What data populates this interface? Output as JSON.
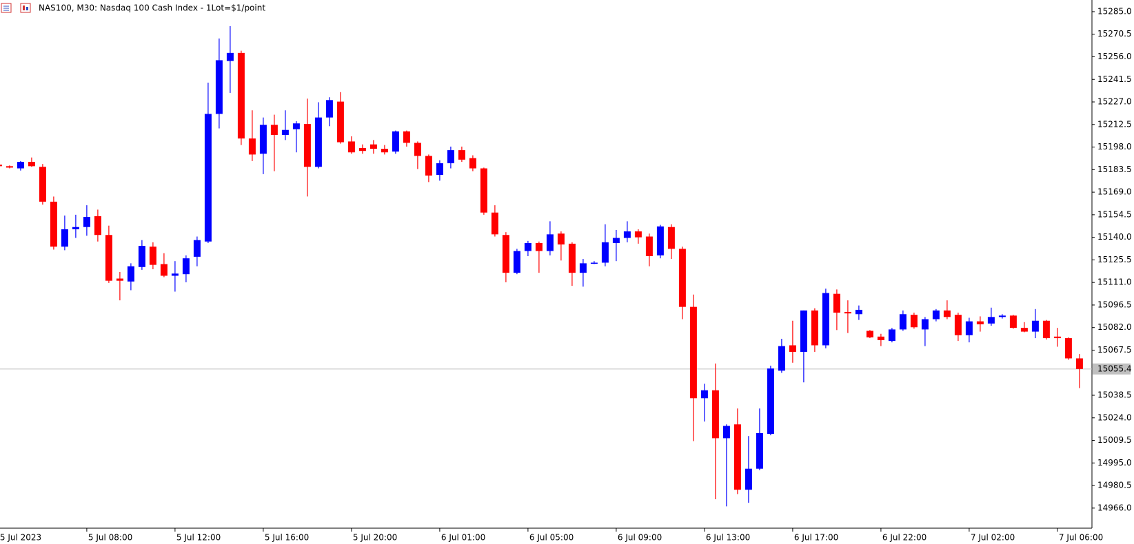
{
  "chart_data": {
    "type": "candlestick",
    "title": "NAS100, M30:  Nasdaq 100 Cash Index - 1Lot=$1/point",
    "up_color": "#0000ff",
    "down_color": "#ff0000",
    "categories": [
      "5 Jul 2023",
      null,
      null,
      null,
      null,
      null,
      null,
      null,
      "5 Jul 08:00",
      null,
      null,
      null,
      null,
      null,
      null,
      null,
      "5 Jul 12:00",
      null,
      null,
      null,
      null,
      null,
      null,
      null,
      "5 Jul 16:00",
      null,
      null,
      null,
      null,
      null,
      null,
      null,
      "5 Jul 20:00",
      null,
      null,
      null,
      null,
      null,
      null,
      null,
      "6 Jul 01:00",
      null,
      null,
      null,
      null,
      null,
      null,
      null,
      "6 Jul 05:00",
      null,
      null,
      null,
      null,
      null,
      null,
      null,
      "6 Jul 09:00",
      null,
      null,
      null,
      null,
      null,
      null,
      null,
      "6 Jul 13:00",
      null,
      null,
      null,
      null,
      null,
      null,
      null,
      "6 Jul 17:00",
      null,
      null,
      null,
      null,
      null,
      null,
      null,
      "6 Jul 22:00",
      null,
      null,
      null,
      null,
      null,
      null,
      null,
      "7 Jul 02:00",
      null,
      null,
      null,
      null,
      null,
      null,
      null,
      "7 Jul 06:00",
      null,
      null
    ],
    "open": [
      15186.7,
      15185.7,
      15184.3,
      15188.5,
      15185.3,
      15162.9,
      15134.0,
      15145.2,
      15146.6,
      15153.6,
      15141.5,
      15113.5,
      15111.6,
      15120.9,
      15134.0,
      15122.8,
      15115.3,
      15116.3,
      15127.5,
      15137.3,
      15219.3,
      15253.3,
      15258.5,
      15203.5,
      15193.7,
      15212.3,
      15205.8,
      15209.5,
      15212.8,
      15185.3,
      15217.0,
      15227.2,
      15201.6,
      15197.4,
      15199.7,
      15196.9,
      15195.1,
      15208.1,
      15200.7,
      15192.3,
      15180.1,
      15187.6,
      15196.0,
      15190.9,
      15184.3,
      15155.9,
      15141.5,
      15117.2,
      15131.2,
      15136.3,
      15131.2,
      15142.4,
      15135.9,
      15117.2,
      15123.3,
      15123.7,
      15136.3,
      15139.6,
      15143.8,
      15140.5,
      15128.4,
      15146.6,
      15132.6,
      15095.3,
      15036.6,
      15041.7,
      15010.9,
      15019.8,
      14977.8,
      14991.3,
      15013.7,
      15054.3,
      15070.6,
      15066.4,
      15093.0,
      15070.6,
      15103.7,
      15092.0,
      15090.6,
      15079.9,
      15076.2,
      15073.4,
      15080.8,
      15090.2,
      15080.8,
      15087.4,
      15093.0,
      15090.2,
      15077.1,
      15086.0,
      15084.6,
      15088.8,
      15089.7,
      15081.8,
      15079.4,
      15086.4,
      15076.2,
      15075.2,
      15062.2
    ],
    "high": [
      15187.1,
      15186.2,
      15189.0,
      15191.3,
      15187.1,
      15166.2,
      15154.0,
      15154.5,
      15160.6,
      15157.8,
      15147.5,
      15117.7,
      15123.3,
      15138.2,
      15136.8,
      15129.8,
      15124.7,
      15128.4,
      15140.5,
      15239.4,
      15267.8,
      15275.7,
      15259.9,
      15221.6,
      15217.0,
      15218.8,
      15221.6,
      15214.6,
      15229.1,
      15226.8,
      15230.0,
      15233.3,
      15204.9,
      15199.7,
      15202.5,
      15199.3,
      15208.6,
      15208.6,
      15201.6,
      15193.2,
      15189.5,
      15198.3,
      15198.3,
      15192.7,
      15184.8,
      15160.6,
      15143.3,
      15132.6,
      15137.7,
      15137.3,
      15150.3,
      15143.8,
      15136.8,
      15126.1,
      15124.7,
      15148.4,
      15144.7,
      15150.3,
      15145.2,
      15142.4,
      15148.0,
      15148.4,
      15134.0,
      15103.2,
      15045.9,
      15058.9,
      15019.8,
      15030.0,
      15012.3,
      15030.0,
      15057.5,
      15074.8,
      15086.4,
      15093.0,
      15094.4,
      15107.0,
      15106.5,
      15099.5,
      15096.2,
      15080.4,
      15078.0,
      15081.8,
      15093.0,
      15091.6,
      15088.8,
      15093.9,
      15099.5,
      15091.6,
      15088.3,
      15089.2,
      15094.8,
      15090.6,
      15090.2,
      15085.5,
      15093.9,
      15086.9,
      15081.8,
      15075.7,
      15065.0
    ],
    "low": [
      15185.3,
      15184.3,
      15182.9,
      15185.3,
      15161.0,
      15132.1,
      15131.7,
      15139.6,
      15141.0,
      15137.3,
      15110.7,
      15099.5,
      15106.0,
      15119.1,
      15119.5,
      15114.4,
      15105.1,
      15111.1,
      15121.4,
      15136.3,
      15210.0,
      15232.8,
      15199.3,
      15189.0,
      15180.6,
      15182.5,
      15202.5,
      15194.6,
      15166.2,
      15184.3,
      15211.4,
      15200.2,
      15193.7,
      15193.7,
      15193.7,
      15193.2,
      15193.7,
      15198.3,
      15183.9,
      15175.5,
      15176.4,
      15184.3,
      15188.5,
      15182.5,
      15154.5,
      15140.5,
      15111.1,
      15116.3,
      15127.9,
      15117.2,
      15128.4,
      15125.1,
      15108.8,
      15108.3,
      15122.8,
      15121.4,
      15124.7,
      15136.8,
      15135.9,
      15121.4,
      15126.5,
      15126.1,
      15087.4,
      15009.0,
      15021.6,
      14971.7,
      14967.1,
      14975.0,
      14969.4,
      14990.4,
      15012.8,
      15052.9,
      15059.4,
      15046.8,
      15066.4,
      15068.7,
      15080.4,
      15078.5,
      15086.9,
      15075.2,
      15070.1,
      15072.5,
      15079.9,
      15081.3,
      15070.1,
      15086.0,
      15087.4,
      15073.4,
      15072.5,
      15079.4,
      15083.2,
      15087.8,
      15081.3,
      15079.0,
      15075.2,
      15074.3,
      15069.7,
      15061.3,
      15043.1
    ],
    "close": [
      15185.7,
      15184.8,
      15188.5,
      15185.7,
      15162.9,
      15134.0,
      15145.2,
      15146.6,
      15153.1,
      15141.5,
      15112.1,
      15112.1,
      15121.4,
      15134.5,
      15122.3,
      15115.3,
      15116.7,
      15126.5,
      15138.2,
      15219.3,
      15253.8,
      15258.5,
      15203.5,
      15193.2,
      15212.3,
      15205.8,
      15209.0,
      15213.2,
      15185.3,
      15217.0,
      15228.2,
      15201.1,
      15194.6,
      15195.5,
      15196.9,
      15194.6,
      15208.1,
      15200.7,
      15192.3,
      15179.7,
      15187.6,
      15196.0,
      15189.9,
      15184.3,
      15155.9,
      15141.9,
      15117.2,
      15131.2,
      15136.3,
      15131.2,
      15141.9,
      15135.4,
      15117.2,
      15123.3,
      15123.7,
      15136.8,
      15139.6,
      15143.8,
      15140.0,
      15127.9,
      15147.0,
      15132.6,
      15095.3,
      15036.6,
      15041.7,
      15010.9,
      15018.8,
      14977.8,
      14991.3,
      15014.2,
      15055.7,
      15070.1,
      15066.4,
      15093.0,
      15070.6,
      15104.2,
      15091.6,
      15091.1,
      15093.4,
      15075.7,
      15073.9,
      15080.8,
      15090.6,
      15082.2,
      15087.4,
      15093.0,
      15088.8,
      15077.1,
      15086.0,
      15084.1,
      15088.8,
      15089.7,
      15081.8,
      15079.4,
      15086.4,
      15075.2,
      15075.2,
      15062.2,
      15055.4
    ],
    "last_price": 15055.4,
    "ylim": [
      14953.1,
      15292.5
    ],
    "yticks": [
      {
        "value": 15285,
        "label": "15285.0"
      },
      15270.5,
      {
        "value": 15256,
        "label": "15256.0"
      },
      15241.5,
      {
        "value": 15227,
        "label": "15227.0"
      },
      15212.5,
      {
        "value": 15198,
        "label": "15198.0"
      },
      15183.5,
      {
        "value": 15169,
        "label": "15169.0"
      },
      15154.5,
      {
        "value": 15140,
        "label": "15140.0"
      },
      15125.5,
      {
        "value": 15111,
        "label": "15111.0"
      },
      15096.5,
      {
        "value": 15082,
        "label": "15082.0"
      },
      15067.5,
      15038.5,
      {
        "value": 15024,
        "label": "15024.0"
      },
      15009.5,
      {
        "value": 14995,
        "label": "14995.0"
      },
      14980.5,
      {
        "value": 14966,
        "label": "14966.0"
      }
    ]
  }
}
